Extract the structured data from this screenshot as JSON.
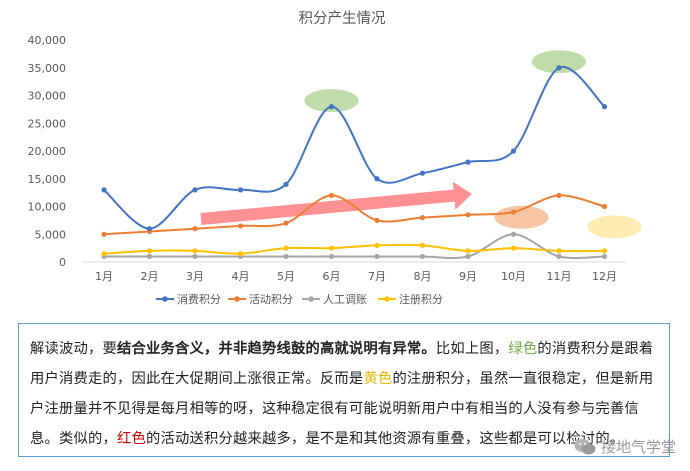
{
  "chart_data": {
    "type": "line",
    "title": "积分产生情况",
    "categories": [
      "1月",
      "2月",
      "3月",
      "4月",
      "5月",
      "6月",
      "7月",
      "8月",
      "9月",
      "10月",
      "11月",
      "12月"
    ],
    "ylim": [
      0,
      40000
    ],
    "yticks": [
      "0",
      "5,000",
      "10,000",
      "15,000",
      "20,000",
      "25,000",
      "30,000",
      "35,000",
      "40,000"
    ],
    "legend_position": "bottom",
    "grid": false,
    "series": [
      {
        "name": "消费积分",
        "color": "#4472c4",
        "values": [
          13000,
          6000,
          13000,
          13000,
          14000,
          28000,
          15000,
          16000,
          18000,
          20000,
          35000,
          28000
        ]
      },
      {
        "name": "活动积分",
        "color": "#ed7d31",
        "values": [
          5000,
          5500,
          6000,
          6500,
          7000,
          12000,
          7500,
          8000,
          8500,
          9000,
          12000,
          10000
        ]
      },
      {
        "name": "人工调账",
        "color": "#a5a5a5",
        "values": [
          1000,
          1000,
          1000,
          1000,
          1000,
          1000,
          1000,
          1000,
          1000,
          5000,
          1000,
          1000
        ]
      },
      {
        "name": "注册积分",
        "color": "#ffc000",
        "values": [
          1500,
          2000,
          2000,
          1500,
          2500,
          2500,
          3000,
          3000,
          2000,
          2500,
          2000,
          2000
        ]
      }
    ],
    "annotations": [
      {
        "kind": "highlight-ellipse",
        "color": "#a9d08e",
        "month": "6月"
      },
      {
        "kind": "highlight-ellipse",
        "color": "#a9d08e",
        "month": "11月"
      },
      {
        "kind": "highlight-ellipse",
        "color": "#f4b183",
        "month": "10月"
      },
      {
        "kind": "highlight-ellipse",
        "color": "#ffe699",
        "month": "12月"
      },
      {
        "kind": "trend-arrow",
        "color": "#ff7c80",
        "from": "3月",
        "to": "9月"
      }
    ]
  },
  "note": {
    "p1": "解读波动，要",
    "p2": "结合业务含义，并非趋势线鼓的高就说明有异常。",
    "p3": "比如上图，",
    "p4": "绿色",
    "p5": "的消费积分是跟着用户消费走的，因此在大促期间上涨很正常。反而是",
    "p6": "黄色",
    "p7": "的注册积分，虽然一直很稳定，但是新用户注册量并不见得是每月相等的呀，这种稳定很有可能说明新用户中有相当的人没有参与完善信息。类似的，",
    "p8": "红色",
    "p9": "的活动送积分越来越多，是不是和其他资源有重叠，这些都是可以检讨的。"
  },
  "watermark": {
    "text": "接地气学堂",
    "icon": "wechat-icon"
  }
}
